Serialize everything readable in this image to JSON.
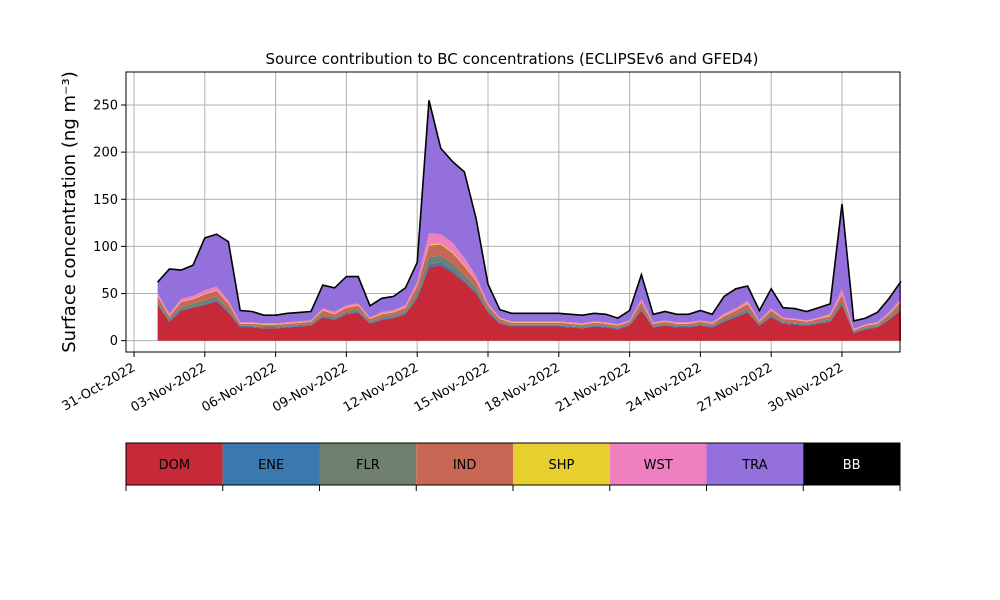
{
  "chart_data": {
    "type": "area",
    "stacked": true,
    "title": "Source contribution to BC concentrations (ECLIPSEv6 and GFED4)",
    "ylabel": "Surface concentration (ng m⁻³)",
    "xlabel": "",
    "ylim": [
      -12,
      285
    ],
    "yticks": [
      0,
      50,
      100,
      150,
      200,
      250
    ],
    "xlim_days": "31-Oct-2022 to 03-Dec-2022",
    "xticks": [
      "31-Oct-2022",
      "03-Nov-2022",
      "06-Nov-2022",
      "09-Nov-2022",
      "12-Nov-2022",
      "15-Nov-2022",
      "18-Nov-2022",
      "21-Nov-2022",
      "24-Nov-2022",
      "27-Nov-2022",
      "30-Nov-2022"
    ],
    "grid": true,
    "x": [
      "2022-11-01",
      "2022-11-01T12",
      "2022-11-02",
      "2022-11-02T12",
      "2022-11-03",
      "2022-11-03T12",
      "2022-11-04",
      "2022-11-04T12",
      "2022-11-05",
      "2022-11-05T12",
      "2022-11-06",
      "2022-11-06T12",
      "2022-11-07",
      "2022-11-07T12",
      "2022-11-08",
      "2022-11-08T12",
      "2022-11-09",
      "2022-11-09T12",
      "2022-11-10",
      "2022-11-10T12",
      "2022-11-11",
      "2022-11-11T12",
      "2022-11-12",
      "2022-11-12T12",
      "2022-11-13",
      "2022-11-13T12",
      "2022-11-14",
      "2022-11-14T12",
      "2022-11-15",
      "2022-11-15T12",
      "2022-11-16",
      "2022-11-16T12",
      "2022-11-17",
      "2022-11-17T12",
      "2022-11-18",
      "2022-11-18T12",
      "2022-11-19",
      "2022-11-19T12",
      "2022-11-20",
      "2022-11-20T12",
      "2022-11-21",
      "2022-11-21T12",
      "2022-11-22",
      "2022-11-22T12",
      "2022-11-23",
      "2022-11-23T12",
      "2022-11-24",
      "2022-11-24T12",
      "2022-11-25",
      "2022-11-25T12",
      "2022-11-26",
      "2022-11-26T12",
      "2022-11-27",
      "2022-11-27T12",
      "2022-11-28",
      "2022-11-28T12",
      "2022-11-29",
      "2022-11-29T12",
      "2022-11-30",
      "2022-11-30T12",
      "2022-12-01",
      "2022-12-01T12",
      "2022-12-02",
      "2022-12-02T12"
    ],
    "series": [
      {
        "name": "DOM",
        "color": "#c62a38",
        "values": [
          38,
          20,
          32,
          35,
          38,
          42,
          30,
          14,
          14,
          13,
          13,
          14,
          15,
          16,
          25,
          22,
          28,
          30,
          18,
          22,
          24,
          28,
          45,
          78,
          80,
          72,
          62,
          50,
          30,
          18,
          15,
          15,
          15,
          15,
          15,
          14,
          13,
          15,
          14,
          12,
          16,
          32,
          14,
          16,
          14,
          14,
          16,
          14,
          20,
          25,
          30,
          16,
          25,
          18,
          17,
          16,
          18,
          20,
          38,
          8,
          12,
          14,
          22,
          32
        ]
      },
      {
        "name": "ENE",
        "color": "#3a78b0",
        "values": [
          1,
          1,
          1,
          1,
          1,
          1,
          1,
          1,
          1,
          1,
          1,
          1,
          1,
          1,
          1,
          1,
          1,
          1,
          1,
          1,
          1,
          1,
          2,
          3,
          3,
          3,
          2,
          2,
          1,
          1,
          1,
          1,
          1,
          1,
          1,
          1,
          1,
          1,
          1,
          1,
          1,
          1,
          1,
          1,
          1,
          1,
          1,
          1,
          1,
          1,
          1,
          1,
          1,
          1,
          1,
          1,
          1,
          1,
          1,
          1,
          1,
          1,
          1,
          1
        ]
      },
      {
        "name": "FLR",
        "color": "#6f8070",
        "values": [
          3,
          2,
          3,
          3,
          4,
          4,
          3,
          1,
          1,
          1,
          1,
          1,
          1,
          1,
          2,
          2,
          2,
          2,
          1,
          2,
          2,
          2,
          4,
          8,
          7,
          7,
          6,
          4,
          2,
          1,
          1,
          1,
          1,
          1,
          1,
          1,
          1,
          1,
          1,
          1,
          1,
          3,
          1,
          1,
          1,
          1,
          1,
          1,
          2,
          2,
          3,
          1,
          2,
          1,
          1,
          1,
          1,
          2,
          4,
          1,
          1,
          1,
          2,
          3
        ]
      },
      {
        "name": "IND",
        "color": "#c96755",
        "values": [
          5,
          3,
          5,
          5,
          6,
          6,
          5,
          2,
          2,
          2,
          2,
          2,
          2,
          2,
          4,
          3,
          4,
          4,
          3,
          3,
          3,
          4,
          7,
          12,
          12,
          11,
          9,
          7,
          4,
          3,
          2,
          2,
          2,
          2,
          2,
          2,
          2,
          2,
          2,
          2,
          2,
          5,
          2,
          2,
          2,
          2,
          2,
          2,
          3,
          4,
          5,
          2,
          4,
          3,
          3,
          2,
          3,
          3,
          6,
          1,
          2,
          2,
          3,
          5
        ]
      },
      {
        "name": "SHP",
        "color": "#e6cf2e",
        "values": [
          0.5,
          0.5,
          0.5,
          0.5,
          0.5,
          0.5,
          0.5,
          0.5,
          0.5,
          0.5,
          0.5,
          0.5,
          0.5,
          0.5,
          0.5,
          0.5,
          0.5,
          0.5,
          0.5,
          0.5,
          0.5,
          0.5,
          0.5,
          1,
          1,
          1,
          1,
          0.5,
          0.5,
          0.5,
          0.5,
          0.5,
          0.5,
          0.5,
          0.5,
          0.5,
          0.5,
          0.5,
          0.5,
          0.5,
          0.5,
          0.5,
          0.5,
          0.5,
          0.5,
          0.5,
          0.5,
          0.5,
          0.5,
          0.5,
          0.5,
          0.5,
          0.5,
          0.5,
          0.5,
          0.5,
          0.5,
          0.5,
          0.5,
          0.5,
          0.5,
          0.5,
          0.5,
          0.5
        ]
      },
      {
        "name": "WST",
        "color": "#f07fbf",
        "values": [
          3,
          2,
          3,
          3,
          4,
          4,
          3,
          1,
          1,
          1,
          1,
          1,
          1,
          1,
          2,
          2,
          2,
          2,
          1,
          2,
          2,
          2,
          4,
          12,
          10,
          10,
          8,
          5,
          2,
          1,
          1,
          1,
          1,
          1,
          1,
          1,
          1,
          1,
          1,
          1,
          1,
          3,
          1,
          1,
          1,
          1,
          1,
          1,
          2,
          2,
          3,
          1,
          2,
          1,
          1,
          1,
          1,
          2,
          5,
          1,
          1,
          1,
          2,
          3
        ]
      },
      {
        "name": "TRA",
        "color": "#9370db",
        "values": [
          11,
          47,
          30,
          32,
          55,
          55,
          62,
          12,
          11,
          8,
          8,
          9,
          9,
          9,
          24,
          25,
          30,
          28,
          12,
          14,
          14,
          18,
          20,
          140,
          90,
          85,
          90,
          60,
          20,
          8,
          8,
          8,
          8,
          8,
          8,
          8,
          8,
          8,
          8,
          6,
          10,
          25,
          8,
          9,
          8,
          8,
          10,
          8,
          18,
          20,
          15,
          10,
          20,
          10,
          10,
          9,
          10,
          10,
          90,
          8,
          6,
          10,
          14,
          18
        ]
      },
      {
        "name": "BB",
        "color": "#000000",
        "values": [
          0.5,
          0.5,
          0.5,
          0.5,
          0.5,
          0.5,
          0.5,
          0.5,
          0.5,
          0.5,
          0.5,
          0.5,
          0.5,
          0.5,
          0.5,
          0.5,
          0.5,
          0.5,
          0.5,
          0.5,
          0.5,
          0.5,
          0.5,
          1,
          1,
          1,
          1,
          0.5,
          0.5,
          0.5,
          0.5,
          0.5,
          0.5,
          0.5,
          0.5,
          0.5,
          0.5,
          0.5,
          0.5,
          0.5,
          0.5,
          0.5,
          0.5,
          0.5,
          0.5,
          0.5,
          0.5,
          0.5,
          0.5,
          0.5,
          0.5,
          0.5,
          0.5,
          0.5,
          0.5,
          0.5,
          0.5,
          0.5,
          0.5,
          0.5,
          0.5,
          0.5,
          0.5,
          0.5
        ]
      }
    ]
  }
}
